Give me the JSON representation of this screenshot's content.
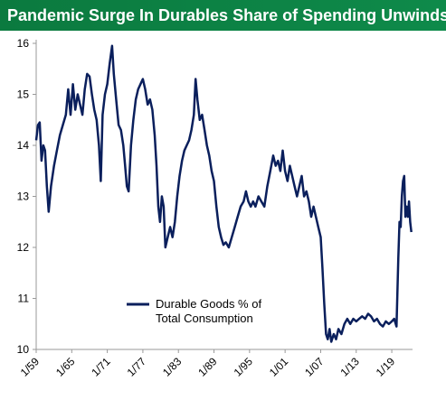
{
  "chart_data": {
    "type": "line",
    "title": "Pandemic Surge In Durables Share of Spending Unwinds",
    "xlabel": "",
    "ylabel": "",
    "ylim": [
      10,
      16
    ],
    "yticks": [
      10,
      11,
      12,
      13,
      14,
      15,
      16
    ],
    "xlim": [
      1959.0,
      2022.5
    ],
    "xticks": [
      {
        "label": "1/59",
        "value": 1959.0
      },
      {
        "label": "1/65",
        "value": 1965.0
      },
      {
        "label": "1/71",
        "value": 1971.0
      },
      {
        "label": "1/77",
        "value": 1977.0
      },
      {
        "label": "1/83",
        "value": 1983.0
      },
      {
        "label": "1/89",
        "value": 1989.0
      },
      {
        "label": "1/95",
        "value": 1995.0
      },
      {
        "label": "1/01",
        "value": 2001.0
      },
      {
        "label": "1/07",
        "value": 2007.0
      },
      {
        "label": "1/13",
        "value": 2013.0
      },
      {
        "label": "1/19",
        "value": 2019.0
      }
    ],
    "grid": false,
    "legend_position": "bottom-left",
    "series": [
      {
        "name": "Durable Goods % of Total Consumption",
        "color": "#0a1f5c",
        "points": [
          [
            1959.0,
            14.1
          ],
          [
            1959.3,
            14.4
          ],
          [
            1959.6,
            14.45
          ],
          [
            1959.9,
            13.7
          ],
          [
            1960.2,
            14.0
          ],
          [
            1960.5,
            13.9
          ],
          [
            1960.8,
            13.2
          ],
          [
            1961.1,
            12.7
          ],
          [
            1961.5,
            13.2
          ],
          [
            1962.0,
            13.6
          ],
          [
            1962.5,
            13.9
          ],
          [
            1963.0,
            14.2
          ],
          [
            1963.5,
            14.4
          ],
          [
            1964.0,
            14.6
          ],
          [
            1964.4,
            15.1
          ],
          [
            1964.8,
            14.6
          ],
          [
            1965.2,
            15.2
          ],
          [
            1965.6,
            14.7
          ],
          [
            1966.0,
            15.0
          ],
          [
            1966.4,
            14.8
          ],
          [
            1966.8,
            14.6
          ],
          [
            1967.2,
            15.1
          ],
          [
            1967.6,
            15.4
          ],
          [
            1968.0,
            15.35
          ],
          [
            1968.4,
            15.0
          ],
          [
            1968.8,
            14.7
          ],
          [
            1969.2,
            14.5
          ],
          [
            1969.6,
            14.0
          ],
          [
            1969.9,
            13.3
          ],
          [
            1970.2,
            14.6
          ],
          [
            1970.6,
            15.0
          ],
          [
            1971.0,
            15.2
          ],
          [
            1971.4,
            15.6
          ],
          [
            1971.8,
            15.95
          ],
          [
            1972.1,
            15.4
          ],
          [
            1972.5,
            14.9
          ],
          [
            1972.9,
            14.4
          ],
          [
            1973.3,
            14.3
          ],
          [
            1973.7,
            14.0
          ],
          [
            1974.0,
            13.6
          ],
          [
            1974.3,
            13.2
          ],
          [
            1974.6,
            13.1
          ],
          [
            1975.0,
            14.0
          ],
          [
            1975.4,
            14.5
          ],
          [
            1975.8,
            14.9
          ],
          [
            1976.2,
            15.1
          ],
          [
            1976.6,
            15.2
          ],
          [
            1977.0,
            15.3
          ],
          [
            1977.4,
            15.1
          ],
          [
            1977.8,
            14.8
          ],
          [
            1978.2,
            14.9
          ],
          [
            1978.6,
            14.7
          ],
          [
            1979.0,
            14.2
          ],
          [
            1979.3,
            13.6
          ],
          [
            1979.6,
            12.8
          ],
          [
            1979.9,
            12.5
          ],
          [
            1980.2,
            13.0
          ],
          [
            1980.5,
            12.8
          ],
          [
            1980.8,
            12.0
          ],
          [
            1981.2,
            12.2
          ],
          [
            1981.6,
            12.4
          ],
          [
            1982.0,
            12.2
          ],
          [
            1982.4,
            12.5
          ],
          [
            1982.8,
            13.0
          ],
          [
            1983.2,
            13.4
          ],
          [
            1983.6,
            13.7
          ],
          [
            1984.0,
            13.9
          ],
          [
            1984.4,
            14.0
          ],
          [
            1984.8,
            14.1
          ],
          [
            1985.2,
            14.3
          ],
          [
            1985.6,
            14.6
          ],
          [
            1985.9,
            15.3
          ],
          [
            1986.2,
            14.9
          ],
          [
            1986.6,
            14.5
          ],
          [
            1987.0,
            14.6
          ],
          [
            1987.4,
            14.3
          ],
          [
            1987.8,
            14.0
          ],
          [
            1988.2,
            13.8
          ],
          [
            1988.6,
            13.5
          ],
          [
            1989.0,
            13.3
          ],
          [
            1989.4,
            12.8
          ],
          [
            1989.8,
            12.4
          ],
          [
            1990.2,
            12.2
          ],
          [
            1990.6,
            12.05
          ],
          [
            1991.0,
            12.1
          ],
          [
            1991.5,
            12.0
          ],
          [
            1992.0,
            12.2
          ],
          [
            1992.5,
            12.4
          ],
          [
            1993.0,
            12.6
          ],
          [
            1993.5,
            12.8
          ],
          [
            1994.0,
            12.9
          ],
          [
            1994.4,
            13.1
          ],
          [
            1994.8,
            12.9
          ],
          [
            1995.2,
            12.8
          ],
          [
            1995.6,
            12.9
          ],
          [
            1996.0,
            12.8
          ],
          [
            1996.5,
            13.0
          ],
          [
            1997.0,
            12.9
          ],
          [
            1997.5,
            12.8
          ],
          [
            1998.0,
            13.2
          ],
          [
            1998.5,
            13.5
          ],
          [
            1999.0,
            13.8
          ],
          [
            1999.4,
            13.6
          ],
          [
            1999.8,
            13.7
          ],
          [
            2000.2,
            13.5
          ],
          [
            2000.6,
            13.9
          ],
          [
            2001.0,
            13.5
          ],
          [
            2001.4,
            13.3
          ],
          [
            2001.8,
            13.6
          ],
          [
            2002.2,
            13.4
          ],
          [
            2002.6,
            13.2
          ],
          [
            2003.0,
            13.0
          ],
          [
            2003.4,
            13.2
          ],
          [
            2003.8,
            13.4
          ],
          [
            2004.2,
            13.0
          ],
          [
            2004.6,
            13.1
          ],
          [
            2005.0,
            12.9
          ],
          [
            2005.4,
            12.6
          ],
          [
            2005.8,
            12.8
          ],
          [
            2006.2,
            12.6
          ],
          [
            2006.6,
            12.4
          ],
          [
            2007.0,
            12.2
          ],
          [
            2007.3,
            11.6
          ],
          [
            2007.6,
            10.9
          ],
          [
            2007.9,
            10.3
          ],
          [
            2008.2,
            10.2
          ],
          [
            2008.5,
            10.4
          ],
          [
            2008.8,
            10.15
          ],
          [
            2009.2,
            10.3
          ],
          [
            2009.6,
            10.2
          ],
          [
            2010.0,
            10.4
          ],
          [
            2010.5,
            10.3
          ],
          [
            2011.0,
            10.5
          ],
          [
            2011.5,
            10.6
          ],
          [
            2012.0,
            10.5
          ],
          [
            2012.5,
            10.6
          ],
          [
            2013.0,
            10.55
          ],
          [
            2013.5,
            10.6
          ],
          [
            2014.0,
            10.65
          ],
          [
            2014.5,
            10.6
          ],
          [
            2015.0,
            10.7
          ],
          [
            2015.5,
            10.65
          ],
          [
            2016.0,
            10.55
          ],
          [
            2016.5,
            10.6
          ],
          [
            2017.0,
            10.5
          ],
          [
            2017.5,
            10.45
          ],
          [
            2018.0,
            10.55
          ],
          [
            2018.5,
            10.5
          ],
          [
            2019.0,
            10.55
          ],
          [
            2019.4,
            10.6
          ],
          [
            2019.8,
            10.45
          ],
          [
            2020.1,
            11.8
          ],
          [
            2020.3,
            12.5
          ],
          [
            2020.5,
            12.4
          ],
          [
            2020.7,
            13.0
          ],
          [
            2020.9,
            13.3
          ],
          [
            2021.1,
            13.4
          ],
          [
            2021.3,
            12.6
          ],
          [
            2021.5,
            12.8
          ],
          [
            2021.7,
            12.6
          ],
          [
            2021.9,
            12.9
          ],
          [
            2022.1,
            12.5
          ],
          [
            2022.3,
            12.3
          ]
        ]
      }
    ]
  }
}
